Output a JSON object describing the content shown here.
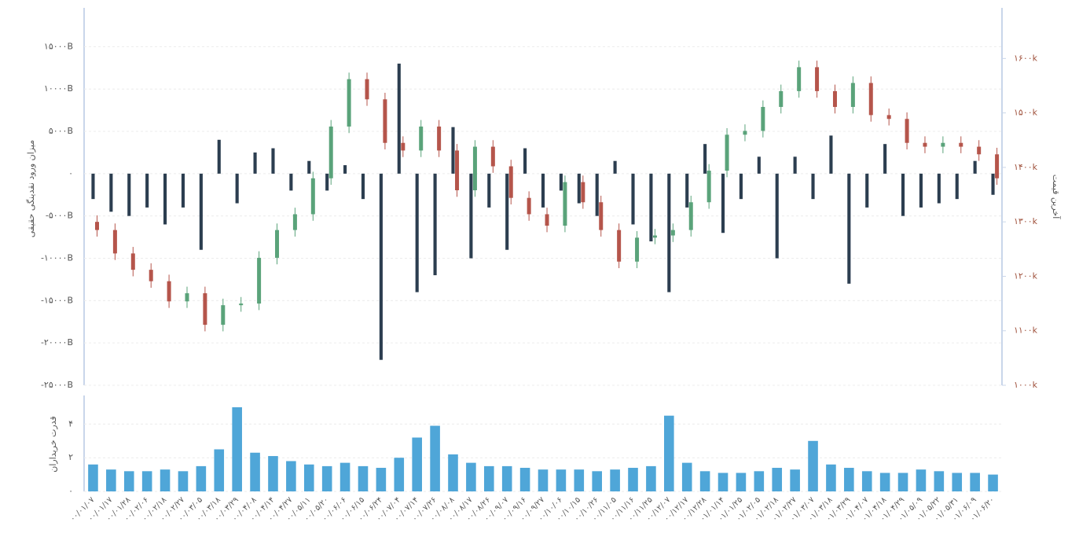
{
  "chart_data": [
    {
      "type": "candlestick",
      "ylabel": "میزان ورود نقدینگی حقیقی",
      "y2label": "آخرین قیمت",
      "ylim": [
        -25000,
        19400
      ],
      "yticks": [
        {
          "value": -25000,
          "label": "-۲۵۰۰۰B"
        },
        {
          "value": -20000,
          "label": "-۲۰۰۰۰B"
        },
        {
          "value": -15000,
          "label": "-۱۵۰۰۰B"
        },
        {
          "value": -10000,
          "label": "-۱۰۰۰۰B"
        },
        {
          "value": -5000,
          "label": "-۵۰۰۰B"
        },
        {
          "value": 0,
          "label": "۰"
        },
        {
          "value": 5000,
          "label": "۵۰۰۰B"
        },
        {
          "value": 10000,
          "label": "۱۰۰۰۰B"
        },
        {
          "value": 15000,
          "label": "۱۵۰۰۰B"
        }
      ],
      "y2lim": [
        1000,
        1690
      ],
      "y2ticks": [
        {
          "value": 1000,
          "label": "۱۰۰۰k"
        },
        {
          "value": 1100,
          "label": "۱۱۰۰k"
        },
        {
          "value": 1200,
          "label": "۱۲۰۰k"
        },
        {
          "value": 1300,
          "label": "۱۳۰۰k"
        },
        {
          "value": 1400,
          "label": "۱۴۰۰k"
        },
        {
          "value": 1500,
          "label": "۱۵۰۰k"
        },
        {
          "value": 1600,
          "label": "۱۶۰۰k"
        }
      ],
      "grid": true,
      "series": [
        {
          "type": "bar",
          "color": "#2c3e50",
          "values": [
            -3000,
            -4500,
            -5000,
            -4000,
            -6000,
            -4000,
            -9000,
            4000,
            -3500,
            2500,
            3000,
            -2000,
            1500,
            -2000,
            1000,
            -3000,
            -22000,
            13000,
            -14000,
            -12000,
            5500,
            -10000,
            -4000,
            -9000,
            3000,
            -4000,
            -2000,
            -3500,
            -5000,
            1500,
            -6000,
            -8000,
            -14000,
            -4000,
            3500,
            -7000,
            -3000,
            2000,
            -10000,
            2000,
            -3000,
            4500,
            -13000,
            -4000,
            3500,
            -5000,
            -4000,
            -3500,
            -3000,
            1500,
            -2500
          ]
        },
        {
          "type": "candlestick",
          "axis": "y2",
          "up_color": "#5aa37a",
          "down_color": "#b5554b",
          "open": [
            1300,
            1285,
            1242,
            1212,
            1191,
            1154,
            1169,
            1111,
            1147,
            1150,
            1234,
            1285,
            1314,
            1380,
            1475,
            1562,
            1525,
            1445,
            1431,
            1475,
            1431,
            1358,
            1438,
            1402,
            1344,
            1314,
            1293,
            1373,
            1336,
            1285,
            1227,
            1271,
            1275,
            1285,
            1336,
            1394,
            1460,
            1467,
            1511,
            1540,
            1584,
            1540,
            1511,
            1555,
            1496,
            1489,
            1445,
            1438,
            1445,
            1438,
            1424
          ],
          "high": [
            1312,
            1297,
            1254,
            1224,
            1203,
            1181,
            1181,
            1159,
            1162,
            1246,
            1297,
            1326,
            1392,
            1487,
            1574,
            1574,
            1537,
            1457,
            1487,
            1487,
            1443,
            1450,
            1450,
            1414,
            1356,
            1326,
            1385,
            1385,
            1348,
            1297,
            1283,
            1287,
            1297,
            1348,
            1406,
            1472,
            1479,
            1523,
            1552,
            1596,
            1596,
            1552,
            1567,
            1567,
            1508,
            1501,
            1457,
            1457,
            1457,
            1450,
            1436
          ],
          "low": [
            1273,
            1230,
            1200,
            1179,
            1142,
            1142,
            1099,
            1099,
            1135,
            1138,
            1222,
            1273,
            1302,
            1368,
            1463,
            1513,
            1433,
            1419,
            1419,
            1419,
            1346,
            1346,
            1390,
            1332,
            1302,
            1281,
            1281,
            1324,
            1273,
            1215,
            1215,
            1259,
            1263,
            1273,
            1324,
            1382,
            1448,
            1455,
            1499,
            1528,
            1528,
            1499,
            1499,
            1484,
            1477,
            1433,
            1426,
            1426,
            1426,
            1412,
            1368
          ],
          "close": [
            1285,
            1242,
            1212,
            1191,
            1154,
            1169,
            1111,
            1147,
            1150,
            1234,
            1285,
            1314,
            1380,
            1475,
            1562,
            1525,
            1445,
            1431,
            1475,
            1431,
            1358,
            1438,
            1402,
            1344,
            1314,
            1293,
            1373,
            1336,
            1285,
            1227,
            1271,
            1275,
            1285,
            1336,
            1394,
            1460,
            1467,
            1511,
            1540,
            1584,
            1540,
            1511,
            1555,
            1496,
            1489,
            1445,
            1438,
            1445,
            1438,
            1424,
            1380
          ]
        }
      ]
    },
    {
      "type": "bar",
      "ylabel": "قدرت خریداران",
      "ylim": [
        0,
        5.7
      ],
      "yticks": [
        {
          "value": 0,
          "label": "۰"
        },
        {
          "value": 2,
          "label": "۲"
        },
        {
          "value": 4,
          "label": "۴"
        }
      ],
      "grid": true,
      "color": "#4fa6d8",
      "categories": [
        "۰۰/۰۱/۰۷",
        "۰۰/۰۱/۱۷",
        "۰۰/۰۱/۲۸",
        "۰۰/۰۲/۰۶",
        "۰۰/۰۲/۱۸",
        "۰۰/۰۲/۲۷",
        "۰۰/۰۳/۰۵",
        "۰۰/۰۳/۱۸",
        "۰۰/۰۳/۲۹",
        "۰۰/۰۴/۰۸",
        "۰۰/۰۴/۱۴",
        "۰۰/۰۴/۲۷",
        "۰۰/۰۵/۱۱",
        "۰۰/۰۵/۲۰",
        "۰۰/۰۶/۰۶",
        "۰۰/۰۶/۱۵",
        "۰۰/۰۶/۲۴",
        "۰۰/۰۷/۰۴",
        "۰۰/۰۷/۱۴",
        "۰۰/۰۷/۲۶",
        "۰۰/۰۸/۰۸",
        "۰۰/۰۸/۱۷",
        "۰۰/۰۸/۲۶",
        "۰۰/۰۹/۰۷",
        "۰۰/۰۹/۱۶",
        "۰۰/۰۹/۲۷",
        "۰۰/۱۰/۰۶",
        "۰۰/۱۰/۱۵",
        "۰۰/۱۰/۲۶",
        "۰۰/۱۱/۰۵",
        "۰۰/۱۱/۱۶",
        "۰۰/۱۱/۲۵",
        "۰۰/۱۲/۰۷",
        "۰۰/۱۲/۱۷",
        "۰۰/۱۲/۲۸",
        "۰۱/۰۱/۱۴",
        "۰۱/۰۱/۲۵",
        "۰۱/۰۲/۰۵",
        "۰۱/۰۲/۱۸",
        "۰۱/۰۲/۲۷",
        "۰۱/۰۳/۰۷",
        "۰۱/۰۳/۱۸",
        "۰۱/۰۳/۲۹",
        "۰۱/۰۴/۰۷",
        "۰۱/۰۴/۱۸",
        "۰۱/۰۴/۲۹",
        "۰۱/۰۵/۰۹",
        "۰۱/۰۵/۲۲",
        "۰۱/۰۵/۳۱",
        "۰۱/۰۶/۰۹",
        "۰۱/۰۶/۲۰"
      ],
      "values": [
        1.6,
        1.3,
        1.2,
        1.2,
        1.3,
        1.2,
        1.5,
        2.5,
        5.0,
        2.3,
        2.1,
        1.8,
        1.6,
        1.5,
        1.7,
        1.5,
        1.4,
        2.0,
        3.2,
        3.9,
        2.2,
        1.7,
        1.5,
        1.5,
        1.4,
        1.3,
        1.3,
        1.3,
        1.2,
        1.3,
        1.4,
        1.5,
        4.5,
        1.7,
        1.2,
        1.1,
        1.1,
        1.2,
        1.4,
        1.3,
        3.0,
        1.6,
        1.4,
        1.2,
        1.1,
        1.1,
        1.3,
        1.2,
        1.1,
        1.1,
        1.0
      ]
    }
  ]
}
